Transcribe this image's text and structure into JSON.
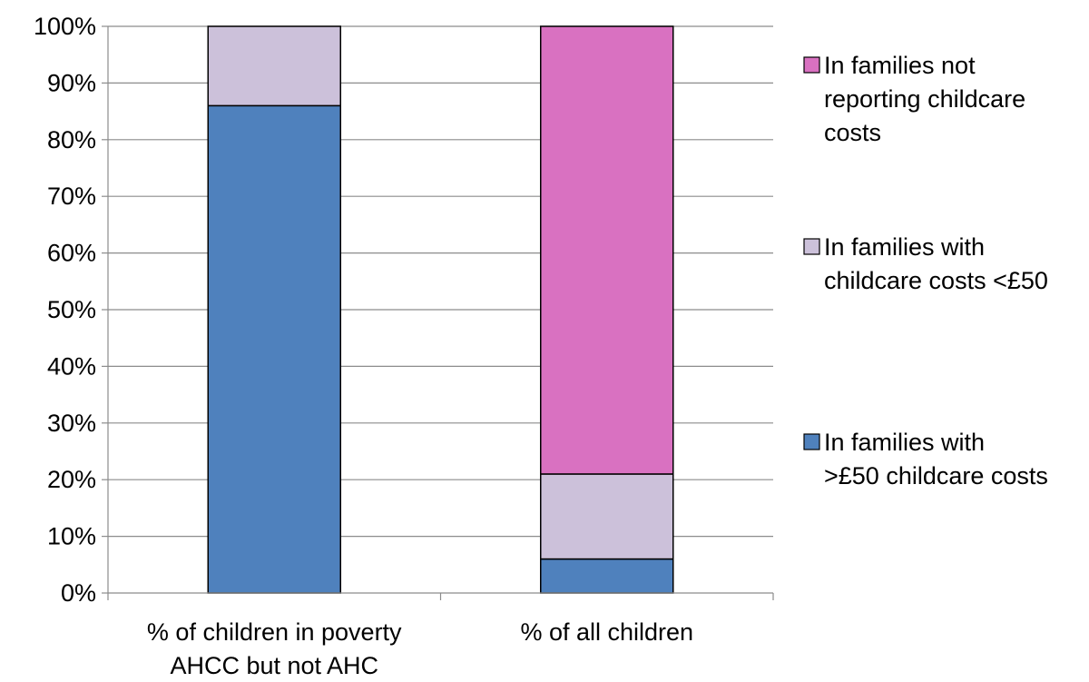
{
  "chart_data": {
    "type": "bar",
    "stacked": true,
    "percent": true,
    "categories": [
      [
        "% of children in poverty",
        "AHCC but not AHC"
      ],
      [
        "% of  all children"
      ]
    ],
    "series": [
      {
        "name": [
          "In families with",
          ">£50 childcare costs"
        ],
        "values": [
          86,
          6
        ],
        "color": "#4f81bd"
      },
      {
        "name": [
          "In families with",
          "childcare costs <£50"
        ],
        "values": [
          14,
          15
        ],
        "color": "#ccc1da"
      },
      {
        "name": [
          "In families not",
          "reporting childcare",
          "costs"
        ],
        "values": [
          0,
          79
        ],
        "color": "#d971c1"
      }
    ],
    "legend_order": [
      2,
      1,
      0
    ],
    "ylim": [
      0,
      100
    ],
    "yticks": [
      0,
      10,
      20,
      30,
      40,
      50,
      60,
      70,
      80,
      90,
      100
    ],
    "ytick_suffix": "%",
    "grid": true,
    "legend_position": "right"
  }
}
